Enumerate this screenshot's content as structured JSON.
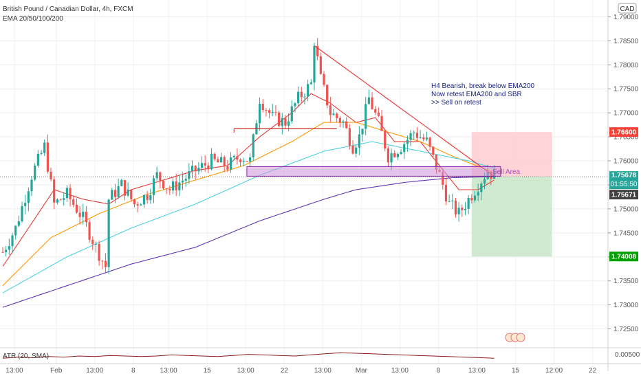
{
  "header": {
    "title": "British Pound / Canadian Dollar, 4h, FXCM",
    "indicator": "EMA 20/50/100/200",
    "currency_badge": "CAD"
  },
  "annotations": {
    "note_lines": [
      "H4 Bearish, break below EMA200",
      "Now retest EMA200 and SBR",
      ">> Sell on retest"
    ],
    "sell_area_label": "Sell Area"
  },
  "price_tags": {
    "stop": "1.76600",
    "current": "1.75678",
    "countdown": "01:55:50",
    "entry": "1.75671",
    "target": "1.74008"
  },
  "colors": {
    "up": "#26a69a",
    "down": "#ef5350",
    "ema20": "#e53935",
    "ema50": "#ff9800",
    "ema100": "#4dd0e1",
    "ema200": "#5e35b1",
    "atr": "#8b1a1a",
    "trendline": "#e53935",
    "stop_zone": "#ffcdd2",
    "target_zone": "#c8e6c9",
    "sell_zone": "#ce93d8",
    "tag_stop": "#f44336",
    "tag_target": "#00a000",
    "tag_dark": "#424242"
  },
  "chart_data": {
    "type": "candlestick",
    "title": "British Pound / Canadian Dollar, 4h, FXCM",
    "y_ticks": [
      "1.79000",
      "1.78500",
      "1.78000",
      "1.77500",
      "1.77000",
      "1.76500",
      "1.76000",
      "1.75500",
      "1.75000",
      "1.74500",
      "1.74000",
      "1.73500",
      "1.73000",
      "1.72500"
    ],
    "y_tick_values": [
      1.79,
      1.785,
      1.78,
      1.775,
      1.77,
      1.765,
      1.76,
      1.755,
      1.75,
      1.745,
      1.74,
      1.735,
      1.73,
      1.725
    ],
    "ylim": [
      1.7215,
      1.7935
    ],
    "x_ticks": [
      "13:00",
      "Feb",
      "13:00",
      "8",
      "13:00",
      "15",
      "13:00",
      "22",
      "13:00",
      "Mar",
      "13:00",
      "8",
      "13:00",
      "15",
      "12:00",
      "22"
    ],
    "x_tick_bars": [
      0,
      13,
      25,
      37,
      48,
      60,
      72,
      84,
      96,
      108,
      120,
      132,
      144,
      156,
      168,
      180
    ],
    "n_bars": 185,
    "anchors": [
      [
        0,
        1.741
      ],
      [
        4,
        1.746
      ],
      [
        9,
        1.757
      ],
      [
        13,
        1.763
      ],
      [
        16,
        1.751
      ],
      [
        20,
        1.753
      ],
      [
        25,
        1.748
      ],
      [
        29,
        1.742
      ],
      [
        32,
        1.738
      ],
      [
        33,
        1.752
      ],
      [
        37,
        1.755
      ],
      [
        41,
        1.751
      ],
      [
        45,
        1.753
      ],
      [
        48,
        1.757
      ],
      [
        52,
        1.754
      ],
      [
        56,
        1.756
      ],
      [
        60,
        1.758
      ],
      [
        65,
        1.76
      ],
      [
        70,
        1.759
      ],
      [
        74,
        1.761
      ],
      [
        77,
        1.76
      ],
      [
        80,
        1.773
      ],
      [
        84,
        1.769
      ],
      [
        88,
        1.768
      ],
      [
        92,
        1.773
      ],
      [
        96,
        1.776
      ],
      [
        97,
        1.785
      ],
      [
        99,
        1.777
      ],
      [
        102,
        1.77
      ],
      [
        106,
        1.768
      ],
      [
        109,
        1.763
      ],
      [
        111,
        1.765
      ],
      [
        114,
        1.773
      ],
      [
        117,
        1.768
      ],
      [
        120,
        1.761
      ],
      [
        124,
        1.763
      ],
      [
        128,
        1.766
      ],
      [
        132,
        1.764
      ],
      [
        136,
        1.757
      ],
      [
        139,
        1.751
      ],
      [
        142,
        1.749
      ],
      [
        145,
        1.752
      ],
      [
        148,
        1.755
      ],
      [
        151,
        1.758
      ],
      [
        153,
        1.7568
      ]
    ],
    "ema": [
      {
        "name": "EMA 20",
        "points": [
          [
            0,
            1.738
          ],
          [
            10,
            1.748
          ],
          [
            16,
            1.754
          ],
          [
            25,
            1.752
          ],
          [
            33,
            1.751
          ],
          [
            40,
            1.754
          ],
          [
            50,
            1.756
          ],
          [
            60,
            1.758
          ],
          [
            70,
            1.759
          ],
          [
            80,
            1.765
          ],
          [
            90,
            1.77
          ],
          [
            96,
            1.774
          ],
          [
            102,
            1.772
          ],
          [
            110,
            1.768
          ],
          [
            116,
            1.769
          ],
          [
            122,
            1.764
          ],
          [
            130,
            1.764
          ],
          [
            136,
            1.759
          ],
          [
            142,
            1.754
          ],
          [
            148,
            1.754
          ],
          [
            153,
            1.756
          ]
        ]
      },
      {
        "name": "EMA 50",
        "points": [
          [
            0,
            1.734
          ],
          [
            15,
            1.744
          ],
          [
            30,
            1.749
          ],
          [
            45,
            1.753
          ],
          [
            60,
            1.756
          ],
          [
            75,
            1.759
          ],
          [
            90,
            1.764
          ],
          [
            100,
            1.768
          ],
          [
            110,
            1.768
          ],
          [
            120,
            1.766
          ],
          [
            130,
            1.764
          ],
          [
            140,
            1.761
          ],
          [
            153,
            1.7575
          ]
        ]
      },
      {
        "name": "EMA 100",
        "points": [
          [
            0,
            1.7325
          ],
          [
            20,
            1.74
          ],
          [
            40,
            1.746
          ],
          [
            60,
            1.751
          ],
          [
            80,
            1.757
          ],
          [
            100,
            1.762
          ],
          [
            115,
            1.764
          ],
          [
            130,
            1.762
          ],
          [
            145,
            1.76
          ],
          [
            153,
            1.7585
          ]
        ]
      },
      {
        "name": "EMA 200",
        "points": [
          [
            0,
            1.7295
          ],
          [
            20,
            1.734
          ],
          [
            40,
            1.7385
          ],
          [
            60,
            1.742
          ],
          [
            80,
            1.7475
          ],
          [
            100,
            1.752
          ],
          [
            110,
            1.754
          ],
          [
            125,
            1.7555
          ],
          [
            140,
            1.7565
          ],
          [
            153,
            1.7567
          ]
        ]
      }
    ],
    "trendline": [
      [
        97,
        1.784
      ],
      [
        153,
        1.7568
      ]
    ],
    "support_line": {
      "x1": 72,
      "x2": 104,
      "y": 1.7667
    },
    "sell_area": {
      "x1": 76,
      "x2": 155,
      "y_top": 1.7588,
      "y_bottom": 1.7568
    },
    "position": {
      "x1": 146,
      "x2": 171,
      "stop": 1.766,
      "entry": 1.7567,
      "target": 1.74008
    },
    "atr": {
      "label": "ATR (20, SMA)",
      "y_tick": "0.00500",
      "values": [
        0.0046,
        0.0048,
        0.0047,
        0.0049,
        0.0048,
        0.005,
        0.0049,
        0.0051,
        0.005,
        0.0049,
        0.005,
        0.0052,
        0.0051,
        0.005,
        0.0049,
        0.0051,
        0.0053,
        0.0052,
        0.0051,
        0.005,
        0.0052,
        0.0054,
        0.0056,
        0.0055,
        0.0054,
        0.0053,
        0.0052,
        0.0051,
        0.005,
        0.0049,
        0.0048,
        0.0047,
        0.0046
      ]
    }
  }
}
